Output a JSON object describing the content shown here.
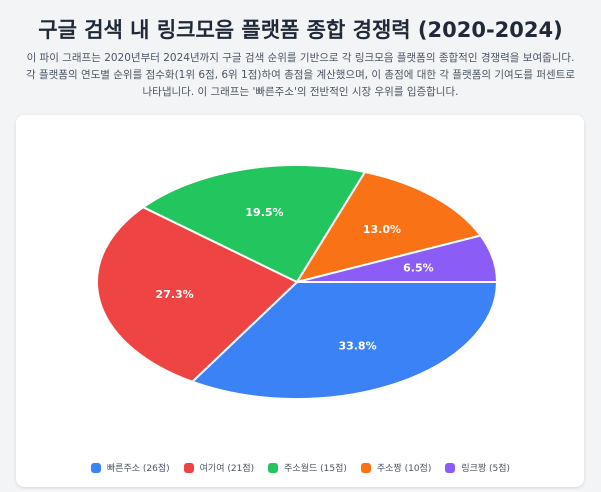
{
  "title": "구글 검색 내 링크모음 플랫폼 종합 경쟁력 (2020-2024)",
  "description": "이 파이 그래프는 2020년부터 2024년까지 구글 검색 순위를 기반으로 각 링크모음 플랫폼의 종합적인 경쟁력을 보여줍니다. 각 플랫폼의 연도별 순위를 점수화(1위 6점, 6위 1점)하여 총점을 계산했으며, 이 총점에 대한 각 플랫폼의 기여도를 퍼센트로 나타냅니다. 이 그래프는 '빠른주소'의 전반적인 시장 우위를 입증합니다.",
  "chart_data": {
    "type": "pie",
    "legend_position": "bottom",
    "slices": [
      {
        "legend": "빠른주소 (26점)",
        "value": 26,
        "label": "33.8%",
        "color": "#3b82f6"
      },
      {
        "legend": "여기여 (21점)",
        "value": 21,
        "label": "27.3%",
        "color": "#ef4444"
      },
      {
        "legend": "주소월드 (15점)",
        "value": 15,
        "label": "19.5%",
        "color": "#22c55e"
      },
      {
        "legend": "주소짱 (10점)",
        "value": 10,
        "label": "13.0%",
        "color": "#f97316"
      },
      {
        "legend": "링크짱 (5점)",
        "value": 5,
        "label": "6.5%",
        "color": "#8b5cf6"
      }
    ]
  }
}
